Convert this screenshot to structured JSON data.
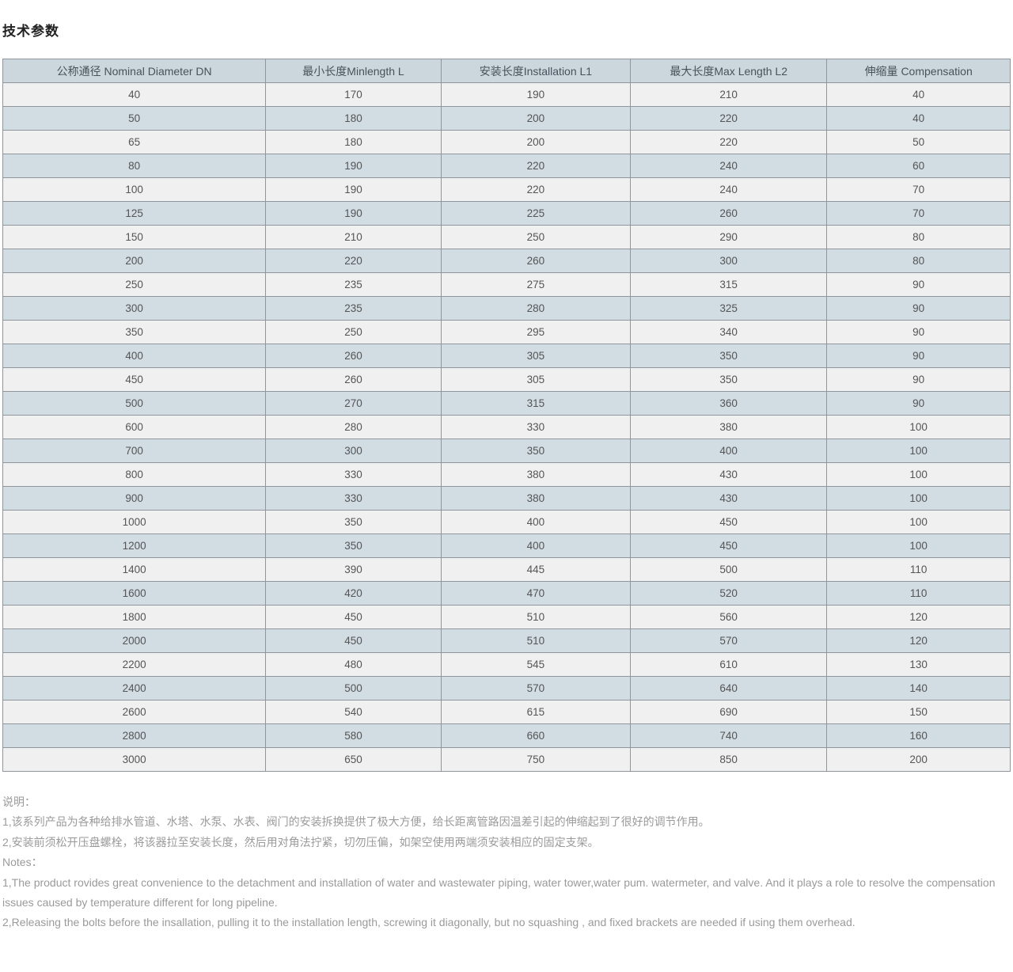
{
  "page": {
    "title": "技术参数"
  },
  "table": {
    "headers": [
      "公称通径 Nominal Diameter DN",
      "最小长度Minlength L",
      "安装长度Installation L1",
      "最大长度Max Length L2",
      "伸缩量 Compensation"
    ],
    "rows": [
      [
        "40",
        "170",
        "190",
        "210",
        "40"
      ],
      [
        "50",
        "180",
        "200",
        "220",
        "40"
      ],
      [
        "65",
        "180",
        "200",
        "220",
        "50"
      ],
      [
        "80",
        "190",
        "220",
        "240",
        "60"
      ],
      [
        "100",
        "190",
        "220",
        "240",
        "70"
      ],
      [
        "125",
        "190",
        "225",
        "260",
        "70"
      ],
      [
        "150",
        "210",
        "250",
        "290",
        "80"
      ],
      [
        "200",
        "220",
        "260",
        "300",
        "80"
      ],
      [
        "250",
        "235",
        "275",
        "315",
        "90"
      ],
      [
        "300",
        "235",
        "280",
        "325",
        "90"
      ],
      [
        "350",
        "250",
        "295",
        "340",
        "90"
      ],
      [
        "400",
        "260",
        "305",
        "350",
        "90"
      ],
      [
        "450",
        "260",
        "305",
        "350",
        "90"
      ],
      [
        "500",
        "270",
        "315",
        "360",
        "90"
      ],
      [
        "600",
        "280",
        "330",
        "380",
        "100"
      ],
      [
        "700",
        "300",
        "350",
        "400",
        "100"
      ],
      [
        "800",
        "330",
        "380",
        "430",
        "100"
      ],
      [
        "900",
        "330",
        "380",
        "430",
        "100"
      ],
      [
        "1000",
        "350",
        "400",
        "450",
        "100"
      ],
      [
        "1200",
        "350",
        "400",
        "450",
        "100"
      ],
      [
        "1400",
        "390",
        "445",
        "500",
        "110"
      ],
      [
        "1600",
        "420",
        "470",
        "520",
        "110"
      ],
      [
        "1800",
        "450",
        "510",
        "560",
        "120"
      ],
      [
        "2000",
        "450",
        "510",
        "570",
        "120"
      ],
      [
        "2200",
        "480",
        "545",
        "610",
        "130"
      ],
      [
        "2400",
        "500",
        "570",
        "640",
        "140"
      ],
      [
        "2600",
        "540",
        "615",
        "690",
        "150"
      ],
      [
        "2800",
        "580",
        "660",
        "740",
        "160"
      ],
      [
        "3000",
        "650",
        "750",
        "850",
        "200"
      ]
    ]
  },
  "notes": {
    "lines": [
      "说明：",
      "1,该系列产品为各种给排水管道、水塔、水泵、水表、阀门的安装拆换提供了极大方便，给长距离管路因温差引起的伸缩起到了很好的调节作用。",
      "2,安装前须松开压盘螺栓，将该器拉至安装长度，然后用对角法拧紧，切勿压偏，如架空使用两端须安装相应的固定支架。",
      "Notes：",
      "1,The product rovides great convenience to the detachment and installation of water and wastewater piping, water tower,water pum. watermeter, and valve. And it plays a role to resolve the compensation issues caused by temperature different for long pipeline.",
      "2,Releasing the bolts before the insallation, pulling it to the installation length, screwing it diagonally, but no squashing , and fixed brackets are needed if using them overhead."
    ]
  },
  "colors": {
    "header_bg": "#ccd6dd",
    "row_even_bg": "#d1dce3",
    "row_odd_bg": "#f0f0f0",
    "border": "#90969b",
    "cell_text": "#555555",
    "header_text": "#48525b",
    "notes_text": "#9a9a9a",
    "title_text": "#222222"
  }
}
